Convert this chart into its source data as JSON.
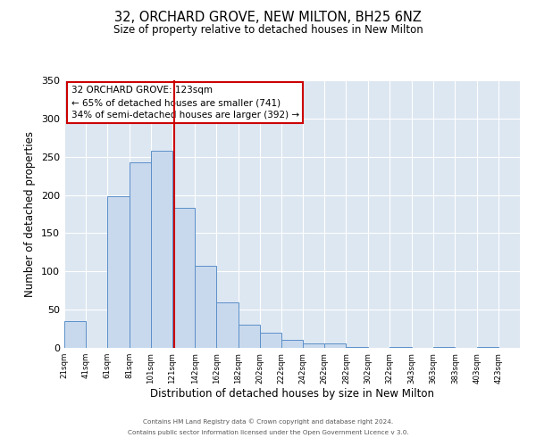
{
  "title": "32, ORCHARD GROVE, NEW MILTON, BH25 6NZ",
  "subtitle": "Size of property relative to detached houses in New Milton",
  "xlabel": "Distribution of detached houses by size in New Milton",
  "ylabel": "Number of detached properties",
  "bar_left_edges": [
    21,
    41,
    61,
    81,
    101,
    121,
    142,
    162,
    182,
    202,
    222,
    242,
    262,
    282,
    302,
    322,
    343,
    363,
    383,
    403
  ],
  "bar_widths": [
    20,
    20,
    20,
    20,
    20,
    21,
    20,
    20,
    20,
    20,
    20,
    20,
    20,
    20,
    20,
    21,
    20,
    20,
    20,
    20
  ],
  "bar_heights": [
    35,
    0,
    198,
    243,
    258,
    183,
    107,
    60,
    30,
    20,
    10,
    6,
    6,
    1,
    0,
    1,
    0,
    1,
    0,
    1
  ],
  "tick_labels": [
    "21sqm",
    "41sqm",
    "61sqm",
    "81sqm",
    "101sqm",
    "121sqm",
    "142sqm",
    "162sqm",
    "182sqm",
    "202sqm",
    "222sqm",
    "242sqm",
    "262sqm",
    "282sqm",
    "302sqm",
    "322sqm",
    "343sqm",
    "363sqm",
    "383sqm",
    "403sqm",
    "423sqm"
  ],
  "tick_positions": [
    21,
    41,
    61,
    81,
    101,
    121,
    142,
    162,
    182,
    202,
    222,
    242,
    262,
    282,
    302,
    322,
    343,
    363,
    383,
    403,
    423
  ],
  "bar_color": "#c9d9ed",
  "bar_edge_color": "#5b8fc9",
  "vline_x": 123,
  "vline_color": "#cc0000",
  "ylim": [
    0,
    350
  ],
  "yticks": [
    0,
    50,
    100,
    150,
    200,
    250,
    300,
    350
  ],
  "annotation_line1": "32 ORCHARD GROVE: 123sqm",
  "annotation_line2": "← 65% of detached houses are smaller (741)",
  "annotation_line3": "34% of semi-detached houses are larger (392) →",
  "annotation_box_color": "#cc0000",
  "footer_line1": "Contains HM Land Registry data © Crown copyright and database right 2024.",
  "footer_line2": "Contains public sector information licensed under the Open Government Licence v 3.0.",
  "background_color": "#dde7f2"
}
